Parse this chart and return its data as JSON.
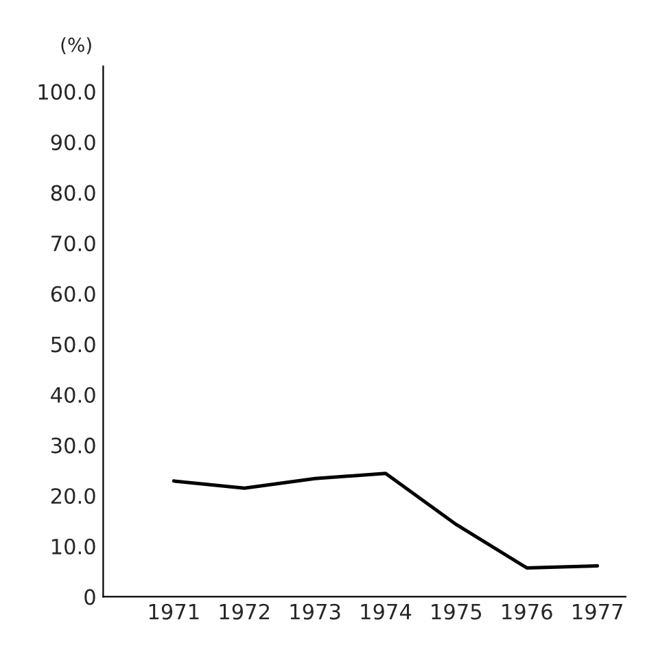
{
  "chart_data": {
    "type": "line",
    "ylabel": "(%)",
    "x": [
      1971,
      1972,
      1973,
      1974,
      1975,
      1976,
      1977
    ],
    "series": [
      {
        "color": "#000000",
        "values": [
          22.9,
          21.5,
          23.4,
          24.4,
          14.3,
          5.7,
          6.1
        ]
      }
    ],
    "xlim": [
      1970,
      1977.4
    ],
    "xticks": [
      1971,
      1972,
      1973,
      1974,
      1975,
      1976,
      1977
    ],
    "ylim": [
      0,
      105
    ],
    "yticks": [
      {
        "value": 0,
        "label": "0"
      },
      {
        "value": 10,
        "label": "10.0"
      },
      {
        "value": 20,
        "label": "20.0"
      },
      {
        "value": 30,
        "label": "30.0"
      },
      {
        "value": 40,
        "label": "40.0"
      },
      {
        "value": 50,
        "label": "50.0"
      },
      {
        "value": 60,
        "label": "60.0"
      },
      {
        "value": 70,
        "label": "70.0"
      },
      {
        "value": 80,
        "label": "80.0"
      },
      {
        "value": 90,
        "label": "90.0"
      },
      {
        "value": 100,
        "label": "100.0"
      }
    ],
    "grid": false,
    "legend": false,
    "marker": "none",
    "line_style": "solid"
  }
}
